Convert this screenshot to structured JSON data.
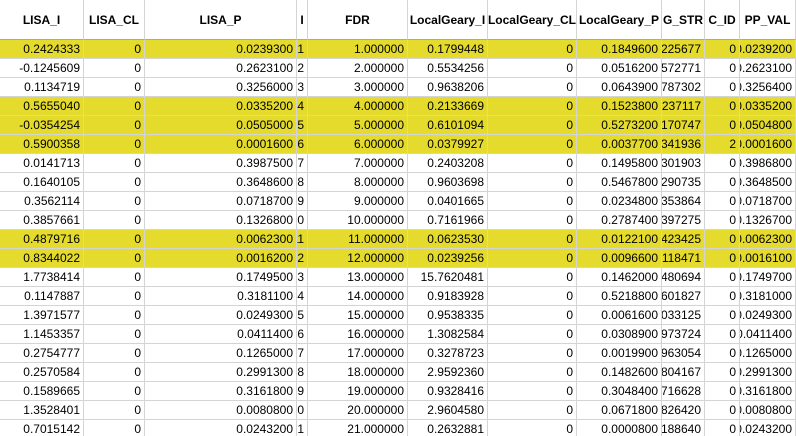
{
  "table": {
    "columns": [
      "LISA_I",
      "LISA_CL",
      "LISA_P",
      "I",
      "FDR",
      "LocalGeary_I",
      "LocalGeary_CL",
      "LocalGeary_P",
      "G_STR",
      "C_ID",
      "PP_VAL"
    ],
    "highlight_color": "#e4db2c",
    "row_highlight": [
      true,
      false,
      false,
      true,
      true,
      true,
      false,
      false,
      false,
      false,
      true,
      true,
      false,
      false,
      false,
      false,
      false,
      false,
      false,
      false,
      false
    ],
    "rows": [
      [
        "0.2424333",
        "0",
        "0.0239300",
        "1",
        "1.000000",
        "0.1799448",
        "0",
        "0.1849600",
        "0225677",
        "0",
        "0.0239200"
      ],
      [
        "-0.1245609",
        "0",
        "0.2623100",
        "2",
        "2.000000",
        "0.5534256",
        "0",
        "0.0516200",
        "0572771",
        "0",
        "0.2623100"
      ],
      [
        "0.1134719",
        "0",
        "0.3256000",
        "3",
        "3.000000",
        "0.9638206",
        "0",
        "0.0643900",
        "0787302",
        "0",
        "0.3256400"
      ],
      [
        "0.5655040",
        "0",
        "0.0335200",
        "4",
        "4.000000",
        "0.2133669",
        "0",
        "0.1523800",
        "0237117",
        "0",
        "0.0335200"
      ],
      [
        "-0.0354254",
        "0",
        "0.0505000",
        "5",
        "5.000000",
        "0.6101094",
        "0",
        "0.5273200",
        "0170747",
        "0",
        "0.0504800"
      ],
      [
        "0.5900358",
        "0",
        "0.0001600",
        "6",
        "6.000000",
        "0.0379927",
        "0",
        "0.0037700",
        "0341936",
        "2",
        "0.0001600"
      ],
      [
        "0.0141713",
        "0",
        "0.3987500",
        "7",
        "7.000000",
        "0.2403208",
        "0",
        "0.1495800",
        "0301903",
        "0",
        "0.3986800"
      ],
      [
        "0.1640105",
        "0",
        "0.3648600",
        "8",
        "8.000000",
        "0.9603698",
        "0",
        "0.5467800",
        "0290735",
        "0",
        "0.3648500"
      ],
      [
        "0.3562114",
        "0",
        "0.0718700",
        "9",
        "9.000000",
        "0.0401665",
        "0",
        "0.0234800",
        "0353864",
        "0",
        "0.0718700"
      ],
      [
        "0.3857661",
        "0",
        "0.1326800",
        "10",
        "10.000000",
        "0.7161966",
        "0",
        "0.2787400",
        "0397275",
        "0",
        "0.1326700"
      ],
      [
        "0.4879716",
        "0",
        "0.0062300",
        "11",
        "11.000000",
        "0.0623530",
        "0",
        "0.0122100",
        "0423425",
        "0",
        "0.0062300"
      ],
      [
        "0.8344022",
        "0",
        "0.0016200",
        "12",
        "12.000000",
        "0.0239256",
        "0",
        "0.0096600",
        "0118471",
        "0",
        "0.0016100"
      ],
      [
        "1.7738414",
        "0",
        "0.1749500",
        "13",
        "13.000000",
        "15.7620481",
        "0",
        "0.1462000",
        "0480694",
        "0",
        "0.1749700"
      ],
      [
        "0.1147887",
        "0",
        "0.3181100",
        "14",
        "14.000000",
        "0.9183928",
        "0",
        "0.5218800",
        "0601827",
        "0",
        "0.3181000"
      ],
      [
        "1.3971577",
        "0",
        "0.0249300",
        "15",
        "15.000000",
        "0.9538335",
        "0",
        "0.0061600",
        "1033125",
        "0",
        "0.0249300"
      ],
      [
        "1.1453357",
        "0",
        "0.0411400",
        "16",
        "16.000000",
        "1.3082584",
        "0",
        "0.0308900",
        "0973724",
        "0",
        "0.0411400"
      ],
      [
        "0.2754777",
        "0",
        "0.1265000",
        "17",
        "17.000000",
        "0.3278723",
        "0",
        "0.0019900",
        "0963054",
        "0",
        "0.1265000"
      ],
      [
        "0.2570584",
        "0",
        "0.2991300",
        "18",
        "18.000000",
        "2.9592360",
        "0",
        "0.1482600",
        "0804167",
        "0",
        "0.2991300"
      ],
      [
        "0.1589665",
        "0",
        "0.3161800",
        "19",
        "19.000000",
        "0.9328416",
        "0",
        "0.3048400",
        "0716628",
        "0",
        "0.3161800"
      ],
      [
        "1.3528401",
        "0",
        "0.0080800",
        "20",
        "20.000000",
        "2.9604580",
        "0",
        "0.0671800",
        "0826420",
        "0",
        "0.0080800"
      ],
      [
        "0.7015142",
        "0",
        "0.0243200",
        "21",
        "21.000000",
        "0.2632881",
        "0",
        "0.0000800",
        "1188640",
        "0",
        "0.0243200"
      ]
    ]
  }
}
